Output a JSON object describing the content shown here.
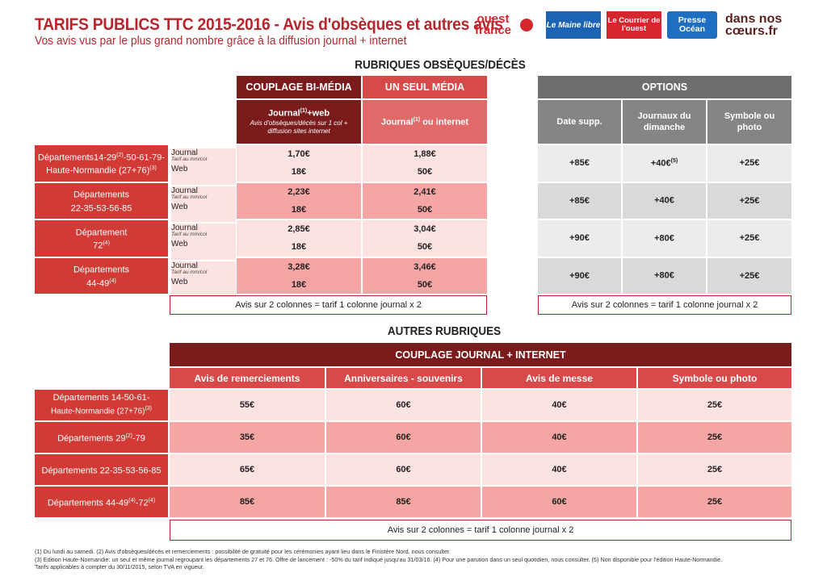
{
  "title": "TARIFS PUBLICS TTC 2015-2016 - Avis d'obsèques et autres avis",
  "subtitle": "Vos avis vus par le plus grand nombre grâce à la diffusion journal + internet",
  "logos": [
    "ouest france",
    "Le Maine libre",
    "Le Courrier de l'ouest",
    "Presse Océan",
    "dans nos cœurs.fr"
  ],
  "obseques": {
    "section_title": "RUBRIQUES OBSÈQUES/DÉCÈS",
    "couplage_label": "COUPLAGE BI-MÉDIA",
    "seul_label": "UN SEUL MÉDIA",
    "couplage_sub_a": "Journal",
    "couplage_sub_sup": "(1)",
    "couplage_sub_b": "+web",
    "couplage_sub_desc": "Avis d'obsèques/décès sur 1 col + diffusion sites internet",
    "seul_sub_a": "Journal",
    "seul_sub_sup": "(1)",
    "seul_sub_b": " ou internet",
    "journal_label": "Journal",
    "tarif_label": "Tarif au mm/col",
    "web_label": "Web",
    "rows": [
      {
        "dept_a": "Départements14-29",
        "sup_a": "(2)",
        "dept_b": "-50-61-79-",
        "dept_c": "Haute-Normandie (27+76)",
        "sup_c": "(3)",
        "couplage_journal": "1,70€",
        "couplage_web": "18€",
        "seul_journal": "1,88€",
        "seul_web": "50€"
      },
      {
        "dept_a": "Départements",
        "sup_a": "",
        "dept_b": "",
        "dept_c": "22-35-53-56-85",
        "sup_c": "",
        "couplage_journal": "2,23€",
        "couplage_web": "18€",
        "seul_journal": "2,41€",
        "seul_web": "50€"
      },
      {
        "dept_a": "Département",
        "sup_a": "",
        "dept_b": "",
        "dept_c": "72",
        "sup_c": "(4)",
        "couplage_journal": "2,85€",
        "couplage_web": "18€",
        "seul_journal": "3,04€",
        "seul_web": "50€"
      },
      {
        "dept_a": "Départements",
        "sup_a": "",
        "dept_b": "",
        "dept_c": "44-49",
        "sup_c": "(4)",
        "couplage_journal": "3,28€",
        "couplage_web": "18€",
        "seul_journal": "3,46€",
        "seul_web": "50€"
      }
    ],
    "note": "Avis sur 2 colonnes = tarif 1 colonne journal x 2"
  },
  "options": {
    "header": "OPTIONS",
    "col1": "Date supp.",
    "col2": "Journaux du dimanche",
    "col3": "Symbole ou photo",
    "rows": [
      {
        "date": "+85€",
        "dimanche": "+40€",
        "dimanche_sup": "(5)",
        "symbole": "+25€"
      },
      {
        "date": "+85€",
        "dimanche": "+40€",
        "dimanche_sup": "",
        "symbole": "+25€"
      },
      {
        "date": "+90€",
        "dimanche": "+80€",
        "dimanche_sup": "",
        "symbole": "+25€"
      },
      {
        "date": "+90€",
        "dimanche": "+80€",
        "dimanche_sup": "",
        "symbole": "+25€"
      }
    ],
    "note": "Avis sur 2 colonnes = tarif 1 colonne journal x 2"
  },
  "autres": {
    "section_title": "AUTRES RUBRIQUES",
    "header": "COUPLAGE JOURNAL + INTERNET",
    "columns": [
      "Avis de remerciements",
      "Anniversaires - souvenirs",
      "Avis de messe",
      "Symbole ou photo"
    ],
    "rows": [
      {
        "dept_a": "Départements 14-50-61-",
        "sup_a": "",
        "dept_b": "Haute-Normandie (27+76)",
        "sup_b": "(3)",
        "values": [
          "55€",
          "60€",
          "40€",
          "25€"
        ]
      },
      {
        "dept_a": "Départements 29",
        "sup_a": "(2)",
        "dept_b": "-79",
        "sup_b": "",
        "values": [
          "35€",
          "60€",
          "40€",
          "25€"
        ]
      },
      {
        "dept_a": "Départements 22-35-53-56-85",
        "sup_a": "",
        "dept_b": "",
        "sup_b": "",
        "values": [
          "65€",
          "60€",
          "40€",
          "25€"
        ]
      },
      {
        "dept_a": "Départements 44-49",
        "sup_a": "(4)",
        "dept_b": "-72",
        "sup_b": "(4)",
        "values": [
          "85€",
          "85€",
          "60€",
          "25€"
        ]
      }
    ],
    "note": "Avis sur 2 colonnes = tarif 1 colonne journal x 2"
  },
  "footnotes": [
    "(1) Du lundi au samedi. (2) Avis d'obsèques/décès et remerciements : possibilité de gratuité pour les cérémonies ayant lieu dans le Finistère Nord, nous consulter.",
    "(3) Edition Haute-Normandie: un seul et même journal regroupant les départements 27 et 76. Offre de lancement : -50% du tarif indiqué jusqu'au 31/03/16. (4) Pour une parution dans un seul quotidien, nous consulter. (5) Non disponible pour l'édition Haute-Normandie.",
    "Tarifs applicables à compter du 30/11/2015, selon TVA en vigueur."
  ],
  "colors": {
    "brand_red": "#b8262d",
    "dark_red": "#7b1c1c",
    "row_red": "#d23a35",
    "grey_dark": "#6e6e6e"
  }
}
